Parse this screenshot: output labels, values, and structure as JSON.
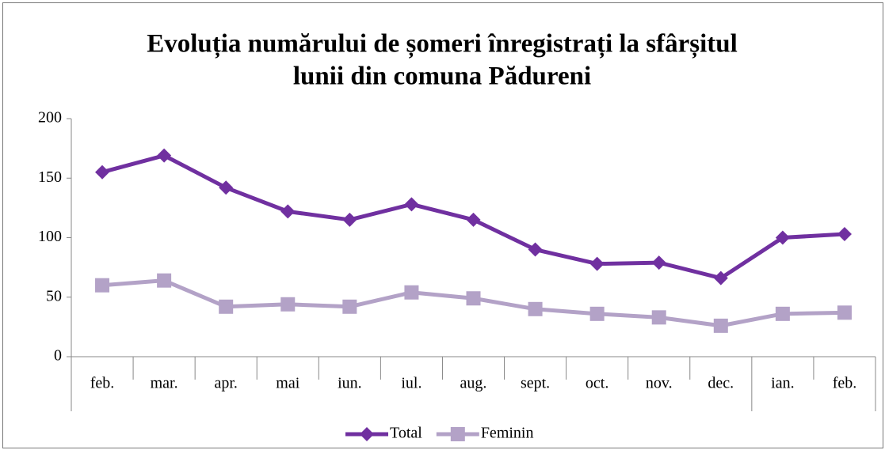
{
  "chart_data": {
    "type": "line",
    "title": [
      "Evoluția numărului de șomeri înregistrați la sfârșitul",
      "lunii din comuna Pădureni"
    ],
    "categories": [
      "feb.",
      "mar.",
      "apr.",
      "mai",
      "iun.",
      "iul.",
      "aug.",
      "sept.",
      "oct.",
      "nov.",
      "dec.",
      "ian.",
      "feb."
    ],
    "series": [
      {
        "name": "Total",
        "color": "#7030a0",
        "marker": "diamond",
        "values": [
          155,
          169,
          142,
          122,
          115,
          128,
          115,
          90,
          78,
          79,
          66,
          100,
          103
        ]
      },
      {
        "name": "Feminin",
        "color": "#b3a2c7",
        "marker": "square",
        "values": [
          60,
          64,
          42,
          44,
          42,
          54,
          49,
          40,
          36,
          33,
          26,
          36,
          37
        ]
      }
    ],
    "ylim": [
      0,
      200
    ],
    "yticks": [
      0,
      50,
      100,
      150,
      200
    ],
    "grid": false,
    "legend": "bottom"
  }
}
